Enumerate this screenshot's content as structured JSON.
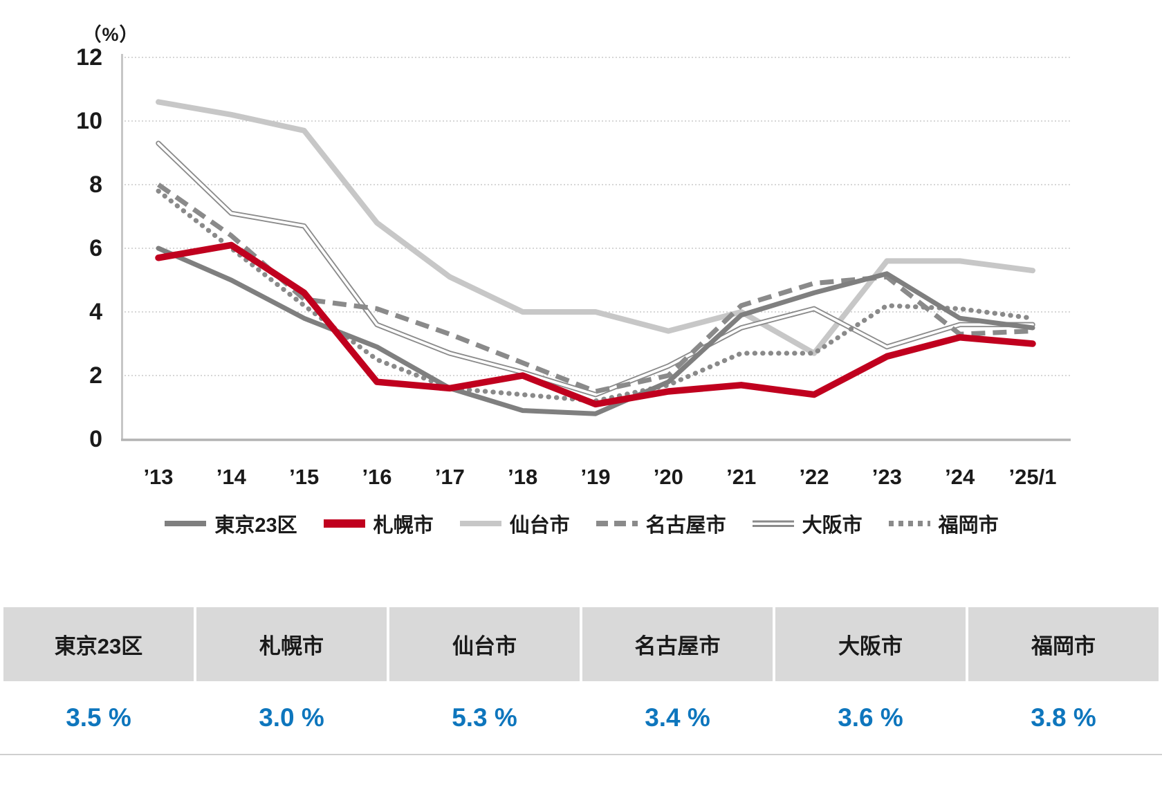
{
  "chart_data": {
    "type": "line",
    "title": "",
    "ylabel": "（%）",
    "xlabel": "",
    "ylim": [
      0,
      12
    ],
    "y_ticks": [
      12,
      10,
      8,
      6,
      4,
      2,
      0
    ],
    "grid": "horizontal-dotted",
    "legend_position": "bottom",
    "categories": [
      "’13",
      "’14",
      "’15",
      "’16",
      "’17",
      "’18",
      "’19",
      "’20",
      "’21",
      "’22",
      "’23",
      "’24",
      "’25/1"
    ],
    "series": [
      {
        "key": "tokyo-23ku",
        "name": "東京23区",
        "color": "#7f7f7f",
        "style": "solid-thick",
        "values": [
          6.0,
          5.0,
          3.8,
          2.9,
          1.6,
          0.9,
          0.8,
          1.8,
          3.9,
          4.6,
          5.2,
          3.8,
          3.5
        ]
      },
      {
        "key": "sapporo",
        "name": "札幌市",
        "color": "#c0001e",
        "style": "solid-thick",
        "values": [
          5.7,
          6.1,
          4.6,
          1.8,
          1.6,
          2.0,
          1.1,
          1.5,
          1.7,
          1.4,
          2.6,
          3.2,
          3.0
        ]
      },
      {
        "key": "sendai",
        "name": "仙台市",
        "color": "#c7c7c7",
        "style": "solid-thick",
        "values": [
          10.6,
          10.2,
          9.7,
          6.8,
          5.1,
          4.0,
          4.0,
          3.4,
          4.0,
          2.7,
          5.6,
          5.6,
          5.3
        ]
      },
      {
        "key": "nagoya",
        "name": "名古屋市",
        "color": "#8a8a8a",
        "style": "dashed",
        "values": [
          8.0,
          6.4,
          4.4,
          4.1,
          3.3,
          2.4,
          1.5,
          2.0,
          4.2,
          4.9,
          5.1,
          3.3,
          3.4
        ]
      },
      {
        "key": "osaka",
        "name": "大阪市",
        "color": "#8a8a8a",
        "style": "double",
        "values": [
          9.3,
          7.1,
          6.7,
          3.6,
          2.7,
          2.1,
          1.4,
          2.3,
          3.5,
          4.1,
          2.9,
          3.6,
          3.6
        ]
      },
      {
        "key": "fukuoka",
        "name": "福岡市",
        "color": "#8a8a8a",
        "style": "dotted",
        "values": [
          7.8,
          6.0,
          4.2,
          2.5,
          1.6,
          1.4,
          1.2,
          1.7,
          2.7,
          2.7,
          4.2,
          4.1,
          3.8
        ]
      }
    ]
  },
  "table": {
    "value_color": "#0e76bd",
    "columns": [
      {
        "label": "東京23区",
        "value": "3.5 %"
      },
      {
        "label": "札幌市",
        "value": "3.0 %"
      },
      {
        "label": "仙台市",
        "value": "5.3 %"
      },
      {
        "label": "名古屋市",
        "value": "3.4 %"
      },
      {
        "label": "大阪市",
        "value": "3.6 %"
      },
      {
        "label": "福岡市",
        "value": "3.8 %"
      }
    ]
  }
}
